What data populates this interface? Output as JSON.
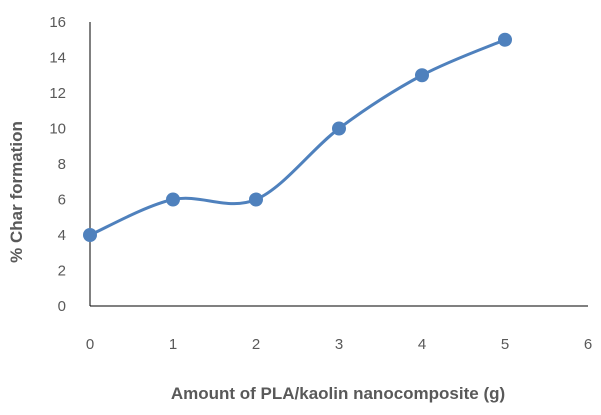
{
  "chart_data": {
    "type": "line",
    "title": "",
    "xlabel": "Amount of PLA/kaolin nanocomposite (g)",
    "ylabel": "% Char formation",
    "xlim": [
      0,
      6
    ],
    "ylim": [
      0,
      16
    ],
    "x_ticks": [
      "0",
      "1",
      "2",
      "3",
      "4",
      "5",
      "6"
    ],
    "y_ticks": [
      "0",
      "2",
      "4",
      "6",
      "8",
      "10",
      "12",
      "14",
      "16"
    ],
    "grid": false,
    "legend": "none",
    "smooth": true,
    "series": [
      {
        "x": [
          0,
          1,
          2,
          3,
          4,
          5
        ],
        "values": [
          4,
          6,
          6,
          10,
          13,
          15
        ],
        "color": "#4F81BD"
      }
    ]
  }
}
